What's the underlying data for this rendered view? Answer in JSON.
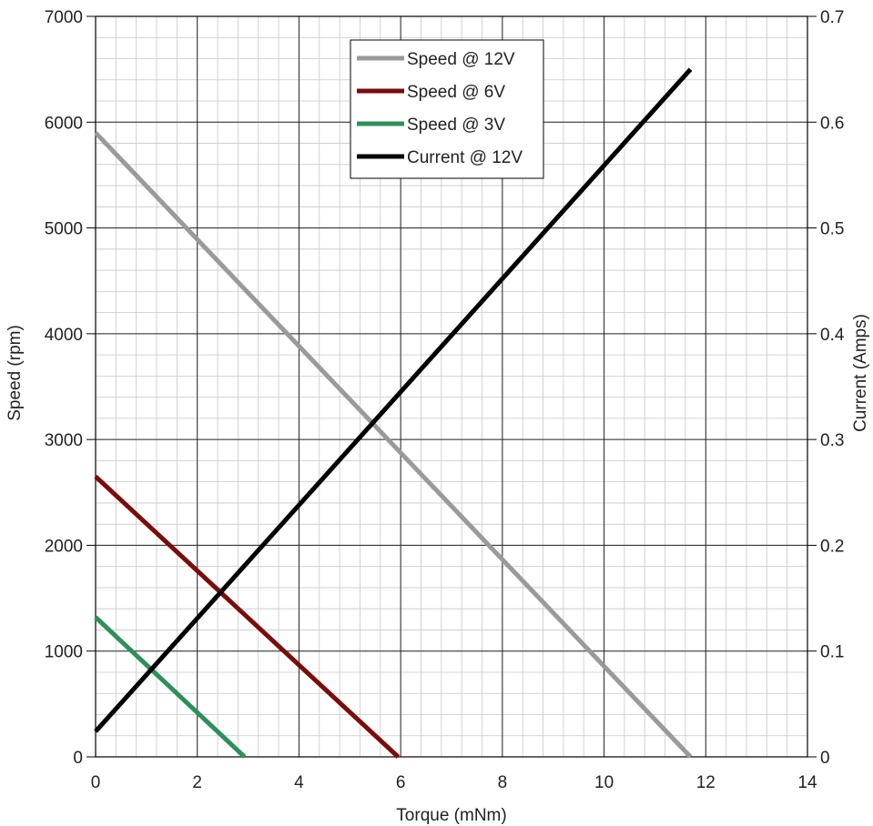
{
  "chart_data": {
    "type": "line",
    "xlabel": "Torque (mNm)",
    "ylabel": "Speed (rpm)",
    "y2label": "Current (Amps)",
    "xlim": [
      0,
      14
    ],
    "ylim": [
      0,
      7000
    ],
    "y2lim": [
      0,
      0.7
    ],
    "xticks": [
      0,
      2,
      4,
      6,
      8,
      10,
      12,
      14
    ],
    "yticks": [
      0,
      1000,
      2000,
      3000,
      4000,
      5000,
      6000,
      7000
    ],
    "y2ticks": [
      0,
      0.1,
      0.2,
      0.3,
      0.4,
      0.5,
      0.6,
      0.7
    ],
    "grid": true,
    "legend_position": "top-center",
    "series": [
      {
        "name": "Speed @ 12V",
        "axis": "left",
        "color": "#9a9a9a",
        "x": [
          0,
          11.7
        ],
        "y": [
          5900,
          0
        ]
      },
      {
        "name": "Speed @ 6V",
        "axis": "left",
        "color": "#7a0c0c",
        "x": [
          0,
          5.95
        ],
        "y": [
          2650,
          0
        ]
      },
      {
        "name": "Speed @ 3V",
        "axis": "left",
        "color": "#2f8f5b",
        "x": [
          0,
          2.93
        ],
        "y": [
          1320,
          0
        ]
      },
      {
        "name": "Current @ 12V",
        "axis": "right",
        "color": "#000000",
        "x": [
          0,
          11.7
        ],
        "y": [
          0.024,
          0.65
        ]
      }
    ]
  }
}
